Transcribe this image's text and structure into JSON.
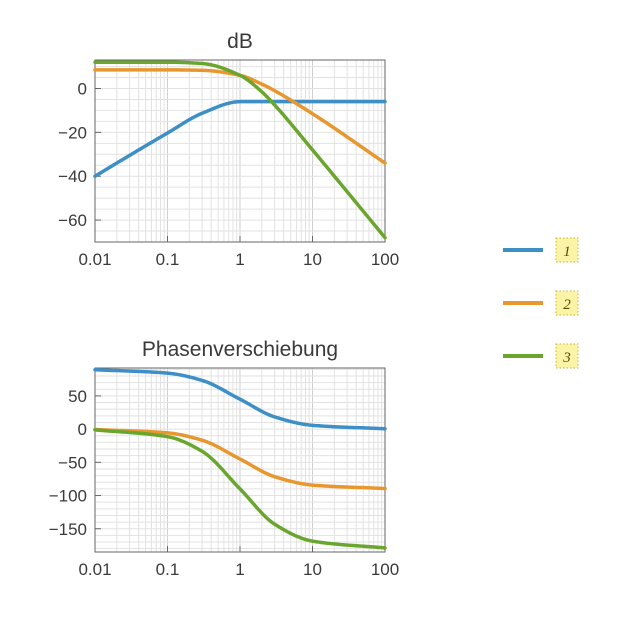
{
  "chart_data": [
    {
      "type": "line",
      "title": "dB",
      "xscale": "log",
      "xlim": [
        0.01,
        100
      ],
      "ylim": [
        -70,
        13
      ],
      "x_ticks": [
        0.01,
        0.1,
        1,
        10,
        100
      ],
      "x_tick_labels": [
        "0.01",
        "0.1",
        "1",
        "10",
        "100"
      ],
      "y_ticks": [
        0,
        -20,
        -40,
        -60
      ],
      "y_tick_labels": [
        "0",
        "−20",
        "−40",
        "−60"
      ],
      "grid": true,
      "series": [
        {
          "name": "1",
          "color": "#3d8fc6",
          "x": [
            0.01,
            0.03,
            0.1,
            0.3,
            1,
            3,
            10,
            100
          ],
          "y": [
            -40,
            -30.5,
            -20.3,
            -11.3,
            -6.0,
            -6.0,
            -6.0,
            -6.0
          ]
        },
        {
          "name": "2",
          "color": "#e8962e",
          "x": [
            0.01,
            0.1,
            0.3,
            1,
            2,
            3,
            10,
            100
          ],
          "y": [
            8.5,
            8.5,
            8.3,
            6.0,
            2.0,
            -1.0,
            -11.5,
            -34.0
          ]
        },
        {
          "name": "3",
          "color": "#6aa62e",
          "x": [
            0.01,
            0.1,
            0.3,
            1,
            2,
            3,
            10,
            100
          ],
          "y": [
            12.0,
            12.0,
            11.4,
            6.0,
            -1.5,
            -7.5,
            -28.0,
            -68.0
          ]
        }
      ]
    },
    {
      "type": "line",
      "title": "Phasenverschiebung",
      "xscale": "log",
      "xlim": [
        0.01,
        100
      ],
      "ylim": [
        -185,
        92
      ],
      "x_ticks": [
        0.01,
        0.1,
        1,
        10,
        100
      ],
      "x_tick_labels": [
        "0.01",
        "0.1",
        "1",
        "10",
        "100"
      ],
      "y_ticks": [
        50,
        0,
        -50,
        -100,
        -150
      ],
      "y_tick_labels": [
        "50",
        "0",
        "−50",
        "−100",
        "−150"
      ],
      "grid": true,
      "series": [
        {
          "name": "1",
          "color": "#3d8fc6",
          "x": [
            0.01,
            0.1,
            0.3,
            1,
            3,
            10,
            100
          ],
          "y": [
            89.4,
            84.3,
            73.3,
            45.0,
            18.4,
            5.7,
            0.6
          ]
        },
        {
          "name": "2",
          "color": "#e8962e",
          "x": [
            0.01,
            0.1,
            0.3,
            1,
            3,
            10,
            100
          ],
          "y": [
            -0.6,
            -5.7,
            -16.7,
            -45.0,
            -71.6,
            -84.3,
            -89.4
          ]
        },
        {
          "name": "3",
          "color": "#6aa62e",
          "x": [
            0.01,
            0.1,
            0.3,
            1,
            3,
            10,
            100
          ],
          "y": [
            -1.1,
            -11.4,
            -33.4,
            -90.0,
            -143.1,
            -168.6,
            -178.9
          ]
        }
      ]
    }
  ],
  "legend": {
    "placement": "right",
    "entries": [
      {
        "label": "1",
        "color": "#3d8fc6"
      },
      {
        "label": "2",
        "color": "#e8962e"
      },
      {
        "label": "3",
        "color": "#6aa62e"
      }
    ]
  }
}
